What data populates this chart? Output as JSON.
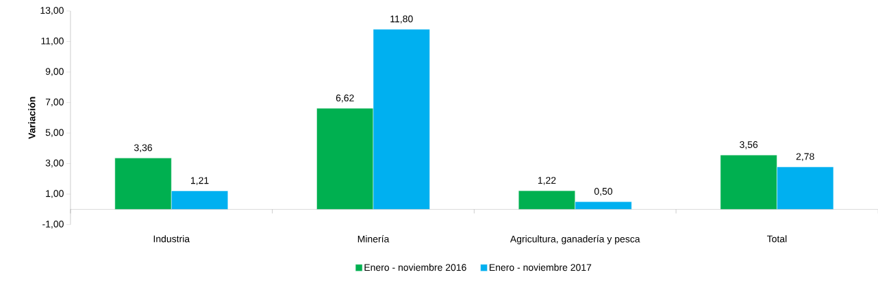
{
  "chart_data": {
    "type": "bar",
    "ylabel": "Variación",
    "categories": [
      "Industria",
      "Minería",
      "Agricultura, ganadería y pesca",
      "Total"
    ],
    "series": [
      {
        "name": "Enero - noviembre 2016",
        "color": "#00b050",
        "values": [
          3.36,
          6.62,
          1.22,
          3.56
        ],
        "value_labels": [
          "3,36",
          "6,62",
          "1,22",
          "3,56"
        ]
      },
      {
        "name": "Enero - noviembre 2017",
        "color": "#00b0f0",
        "values": [
          1.21,
          11.8,
          0.5,
          2.78
        ],
        "value_labels": [
          "1,21",
          "11,80",
          "0,50",
          "2,78"
        ]
      }
    ],
    "ylim": [
      -1,
      13
    ],
    "yticks": [
      {
        "value": -1,
        "label": "-1,00"
      },
      {
        "value": 1,
        "label": "1,00"
      },
      {
        "value": 3,
        "label": "3,00"
      },
      {
        "value": 5,
        "label": "5,00"
      },
      {
        "value": 7,
        "label": "7,00"
      },
      {
        "value": 9,
        "label": "9,00"
      },
      {
        "value": 11,
        "label": "11,00"
      },
      {
        "value": 13,
        "label": "13,00"
      }
    ],
    "legend": "bottom"
  }
}
